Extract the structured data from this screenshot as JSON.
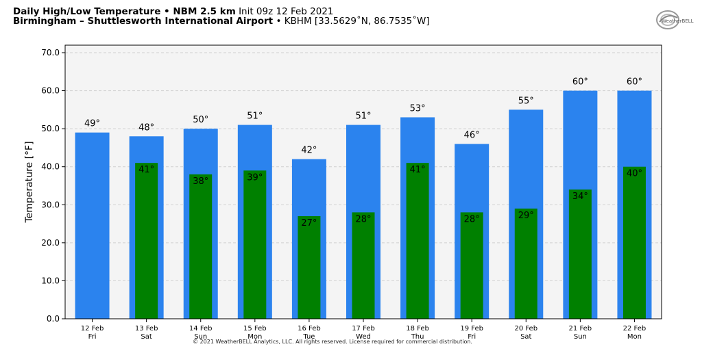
{
  "header": {
    "title_bold": "Daily High/Low Temperature • NBM 2.5 km",
    "init": "Init 09z 12 Feb 2021",
    "station_bold": "Birmingham – Shuttlesworth International Airport",
    "station_info": "• KBHM [33.5629˚N, 86.7535˚W]"
  },
  "logo": {
    "text": "WeatherBELL",
    "icon": "weatherbell-logo-icon"
  },
  "copyright": "© 2021 WeatherBELL Analytics, LLC. All rights reserved. License required for commercial distribution.",
  "colors": {
    "high": "#2b83ee",
    "low": "#008000",
    "plot_bg": "#f4f4f4"
  },
  "chart_data": {
    "type": "bar",
    "ylabel": "Temperature [°F]",
    "ylim": [
      0,
      70
    ],
    "yticks": [
      "0.0",
      "10.0",
      "20.0",
      "30.0",
      "40.0",
      "50.0",
      "60.0",
      "70.0"
    ],
    "grid": true,
    "categories": [
      "12 Feb",
      "13 Feb",
      "14 Feb",
      "15 Feb",
      "16 Feb",
      "17 Feb",
      "18 Feb",
      "19 Feb",
      "20 Feb",
      "21 Feb",
      "22 Feb"
    ],
    "weekdays": [
      "Fri",
      "Sat",
      "Sun",
      "Mon",
      "Tue",
      "Wed",
      "Thu",
      "Fri",
      "Sat",
      "Sun",
      "Mon"
    ],
    "series": [
      {
        "key": "high",
        "values": [
          49,
          48,
          50,
          51,
          42,
          51,
          53,
          46,
          55,
          60,
          60
        ],
        "labels": [
          "49°",
          "48°",
          "50°",
          "51°",
          "42°",
          "51°",
          "53°",
          "46°",
          "55°",
          "60°",
          "60°"
        ]
      },
      {
        "key": "low",
        "values": [
          null,
          41,
          38,
          39,
          27,
          28,
          41,
          28,
          29,
          34,
          40
        ],
        "labels": [
          "",
          "41°",
          "38°",
          "39°",
          "27°",
          "28°",
          "41°",
          "28°",
          "29°",
          "34°",
          "40°"
        ]
      }
    ]
  }
}
